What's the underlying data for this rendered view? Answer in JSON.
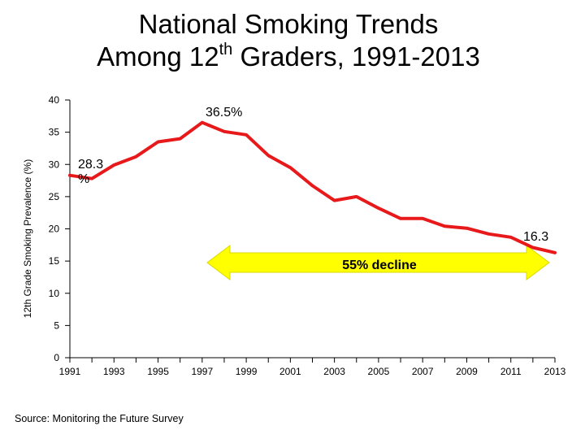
{
  "title": {
    "line1": "National Smoking Trends",
    "line2_prefix": "Among 12",
    "line2_sup": "th",
    "line2_suffix": " Graders, 1991-2013"
  },
  "source": "Source: Monitoring the Future Survey",
  "colors": {
    "line": "#e8191a",
    "arrow": "#ffff00",
    "axis": "#000000"
  },
  "chart_data": {
    "type": "line",
    "title": "National Smoking Trends Among 12th Graders, 1991-2013",
    "xlabel": "",
    "ylabel": "12th Grade Smoking Prevalence (%)",
    "ylim": [
      0,
      40
    ],
    "yticks": [
      0,
      5,
      10,
      15,
      20,
      25,
      30,
      35,
      40
    ],
    "xlim": [
      1991,
      2013
    ],
    "xticks": [
      1991,
      1993,
      1995,
      1997,
      1999,
      2001,
      2003,
      2005,
      2007,
      2009,
      2011,
      2013
    ],
    "grid": false,
    "series": [
      {
        "x": [
          1991,
          1992,
          1993,
          1994,
          1995,
          1996,
          1997,
          1998,
          1999,
          2000,
          2001,
          2002,
          2003,
          2004,
          2005,
          2006,
          2007,
          2008,
          2009,
          2010,
          2011,
          2012,
          2013
        ],
        "values": [
          28.3,
          27.8,
          29.9,
          31.2,
          33.5,
          34.0,
          36.5,
          35.1,
          34.6,
          31.4,
          29.5,
          26.7,
          24.4,
          25.0,
          23.2,
          21.6,
          21.6,
          20.4,
          20.1,
          19.2,
          18.7,
          17.1,
          16.3
        ]
      }
    ],
    "annotations": {
      "start": "28.3 %",
      "peak": "36.5%",
      "end": "16.3",
      "decline": "55% decline"
    }
  }
}
